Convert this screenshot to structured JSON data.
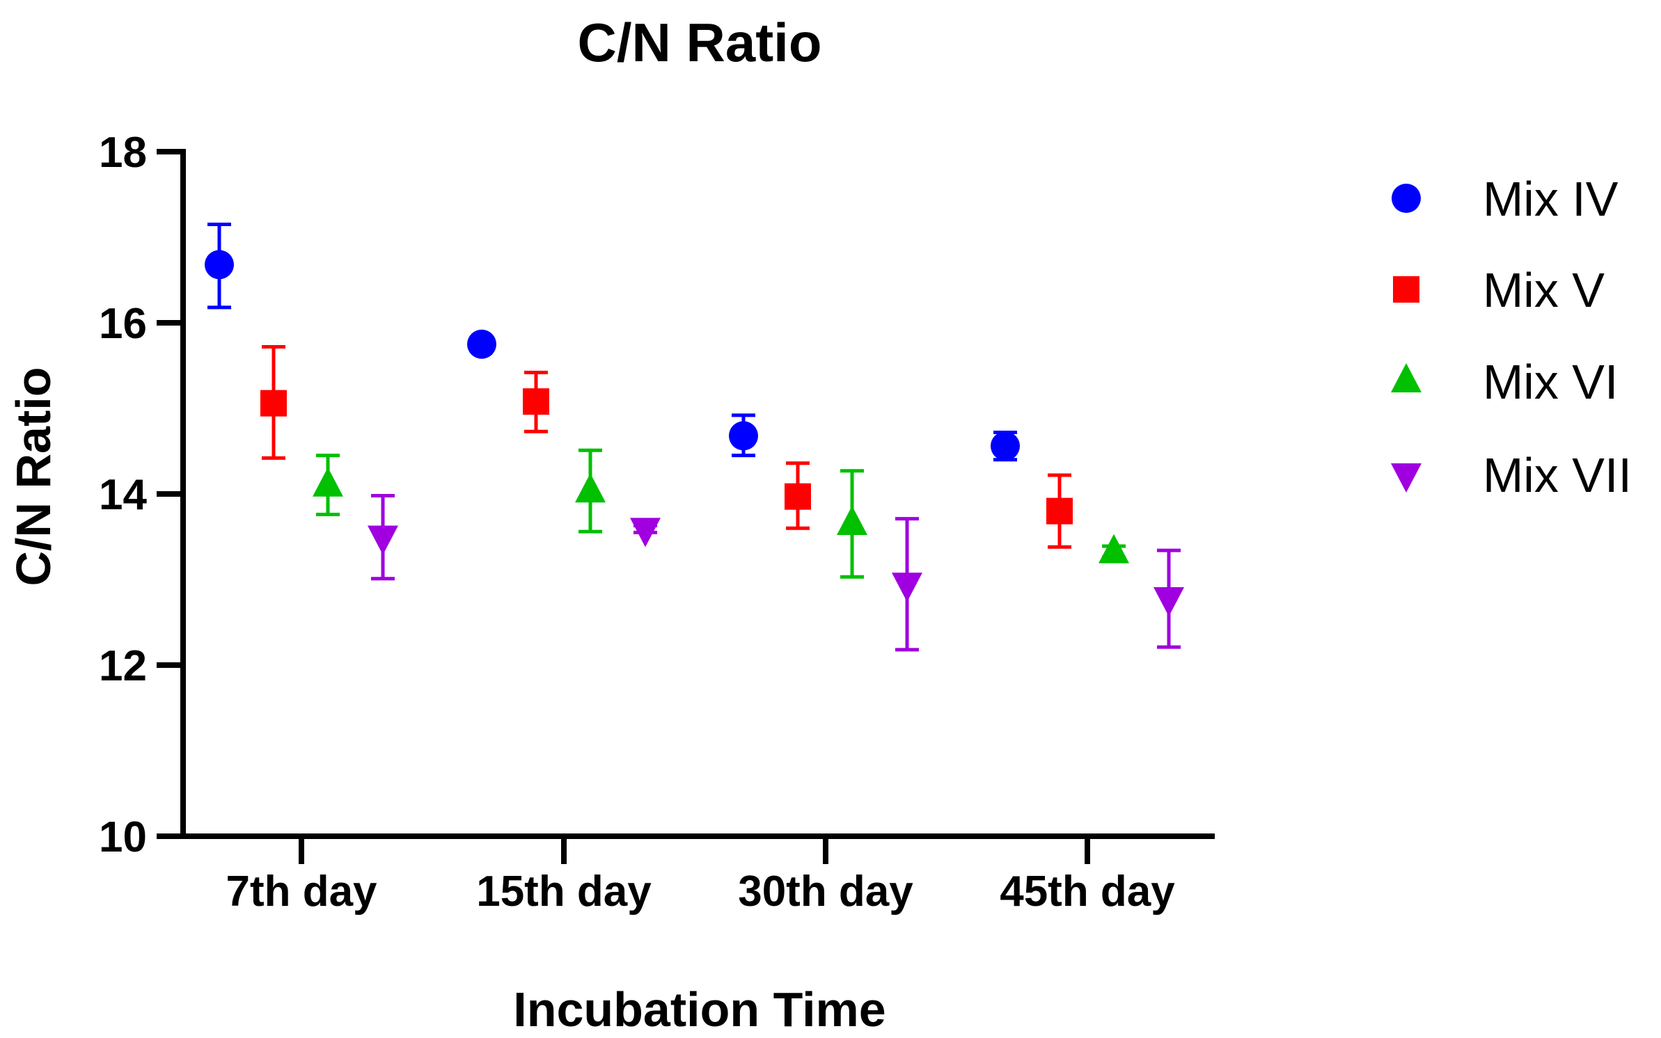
{
  "chart_data": {
    "type": "scatter",
    "title": "C/N Ratio",
    "xlabel": "Incubation Time",
    "ylabel": "C/N Ratio",
    "categories": [
      "7th day",
      "15th day",
      "30th day",
      "45th day"
    ],
    "ylim": [
      10,
      18
    ],
    "yticks": [
      "10",
      "12",
      "14",
      "16",
      "18"
    ],
    "grid": false,
    "legend_position": "right",
    "series": [
      {
        "name": "Mix IV",
        "marker": "circle",
        "color": "#0000ff",
        "values": [
          16.68,
          15.75,
          14.68,
          14.56
        ],
        "err_low": [
          16.18,
          15.75,
          14.45,
          14.4
        ],
        "err_high": [
          17.15,
          15.75,
          14.92,
          14.72
        ]
      },
      {
        "name": "Mix V",
        "marker": "square",
        "color": "#ff0000",
        "values": [
          15.06,
          15.08,
          13.97,
          13.8
        ],
        "err_low": [
          14.42,
          14.73,
          13.6,
          13.38
        ],
        "err_high": [
          15.72,
          15.42,
          14.36,
          14.22
        ]
      },
      {
        "name": "Mix VI",
        "marker": "triangle-up",
        "color": "#00c000",
        "values": [
          14.1,
          14.03,
          13.65,
          13.32
        ],
        "err_low": [
          13.76,
          13.56,
          13.03,
          13.26
        ],
        "err_high": [
          14.45,
          14.51,
          14.27,
          13.39
        ]
      },
      {
        "name": "Mix VII",
        "marker": "triangle-down",
        "color": "#a000e0",
        "values": [
          13.5,
          13.59,
          12.95,
          12.78
        ],
        "err_low": [
          13.01,
          13.55,
          12.18,
          12.21
        ],
        "err_high": [
          13.98,
          13.63,
          13.71,
          13.34
        ]
      }
    ]
  }
}
